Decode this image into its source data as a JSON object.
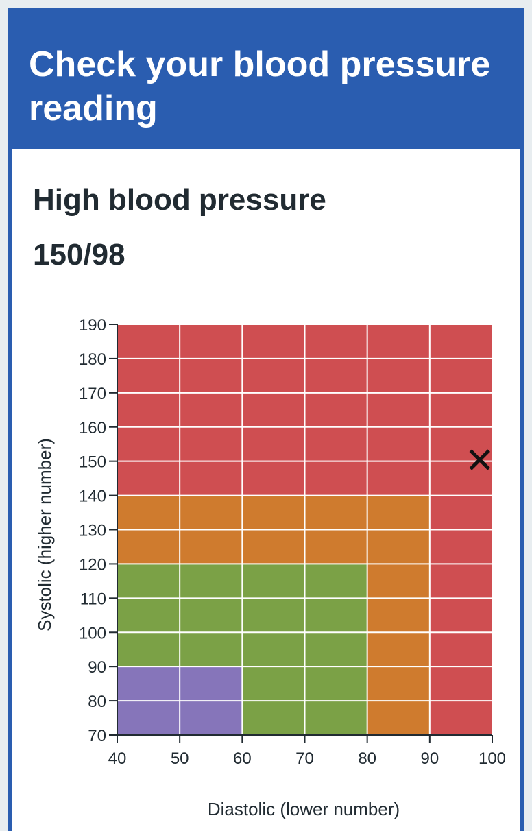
{
  "header": {
    "title": "Check your blood pressure reading"
  },
  "result": {
    "category": "High blood pressure",
    "reading": "150/98"
  },
  "colors": {
    "header_bg": "#2a5db0",
    "low": "#8675ba",
    "ideal": "#7ba146",
    "pre_high": "#cf7b2e",
    "high": "#cf4e51",
    "marker": "#111111"
  },
  "chart_data": {
    "type": "heatmap",
    "xlabel": "Diastolic (lower number)",
    "ylabel": "Systolic (higher number)",
    "xlim": [
      40,
      100
    ],
    "ylim": [
      70,
      190
    ],
    "x_ticks": [
      40,
      50,
      60,
      70,
      80,
      90,
      100
    ],
    "y_ticks": [
      70,
      80,
      90,
      100,
      110,
      120,
      130,
      140,
      150,
      160,
      170,
      180,
      190
    ],
    "grid": true,
    "regions": [
      {
        "category": "high",
        "x": [
          40,
          100
        ],
        "y": [
          70,
          190
        ]
      },
      {
        "category": "pre_high",
        "x": [
          40,
          90
        ],
        "y": [
          70,
          140
        ]
      },
      {
        "category": "ideal",
        "x": [
          40,
          80
        ],
        "y": [
          70,
          120
        ]
      },
      {
        "category": "low",
        "x": [
          40,
          60
        ],
        "y": [
          70,
          90
        ]
      }
    ],
    "marker": {
      "x": 98,
      "y": 150,
      "symbol": "✕"
    }
  }
}
